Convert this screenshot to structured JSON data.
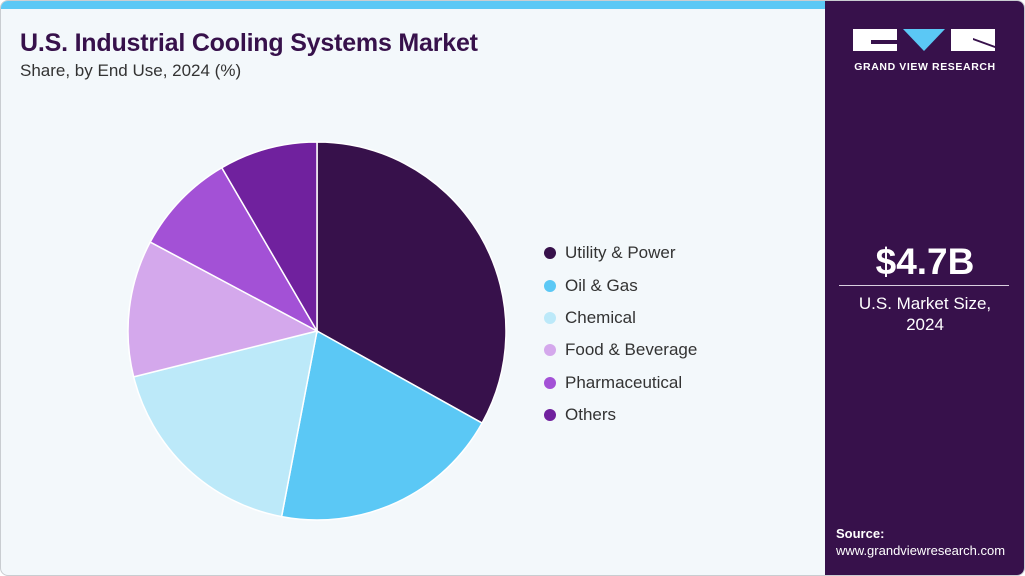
{
  "header": {
    "title": "U.S. Industrial Cooling Systems Market",
    "subtitle": "Share, by End Use, 2024 (%)"
  },
  "sidebar": {
    "brand": "GRAND VIEW RESEARCH",
    "market_value": "$4.7B",
    "market_label_line1": "U.S. Market Size,",
    "market_label_line2": "2024",
    "source_label": "Source:",
    "source_url": "www.grandviewresearch.com"
  },
  "colors": {
    "accent_bar": "#5bc8f5",
    "sidebar_bg": "#37114b",
    "background": "#f3f8fb"
  },
  "legend": [
    {
      "label": "Utility & Power",
      "color": "#37114b"
    },
    {
      "label": "Oil & Gas",
      "color": "#5bc8f5"
    },
    {
      "label": "Chemical",
      "color": "#bce9f9"
    },
    {
      "label": "Food & Beverage",
      "color": "#d4a8ec"
    },
    {
      "label": "Pharmaceutical",
      "color": "#a351d6"
    },
    {
      "label": "Others",
      "color": "#70219e"
    }
  ],
  "chart_data": {
    "type": "pie",
    "title": "U.S. Industrial Cooling Systems Market",
    "subtitle": "Share, by End Use, 2024 (%)",
    "categories": [
      "Utility & Power",
      "Oil & Gas",
      "Chemical",
      "Food & Beverage",
      "Pharmaceutical",
      "Others"
    ],
    "values": [
      33.1,
      19.9,
      18.1,
      11.7,
      8.8,
      8.4
    ],
    "colors": [
      "#37114b",
      "#5bc8f5",
      "#bce9f9",
      "#d4a8ec",
      "#a351d6",
      "#70219e"
    ],
    "start_angle": "12 o'clock, clockwise",
    "legend_position": "right",
    "annotation": "$4.7B U.S. Market Size, 2024"
  }
}
